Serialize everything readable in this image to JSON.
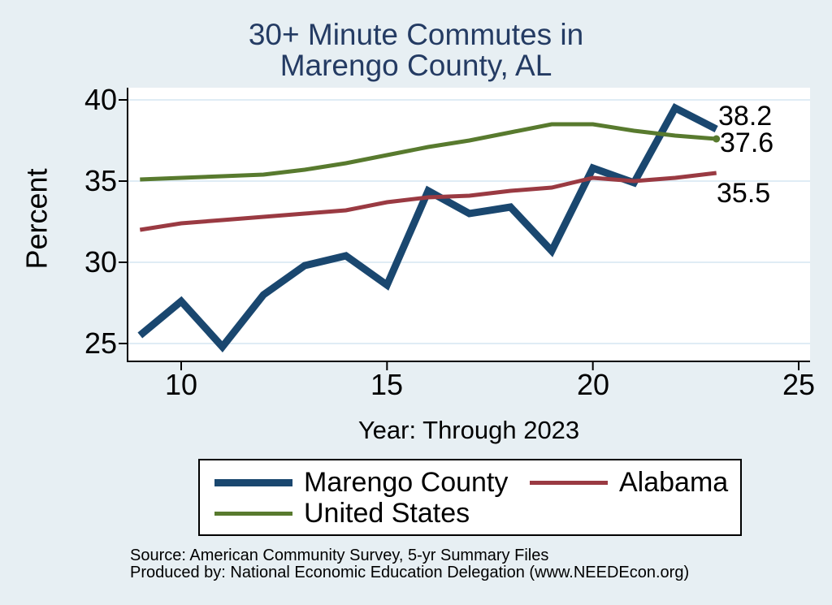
{
  "title": {
    "line1": "30+ Minute Commutes in",
    "line2": "Marengo County, AL"
  },
  "axes": {
    "y_label": "Percent",
    "x_label": "Year: Through 2023",
    "y_tick_labels": [
      "40",
      "35",
      "30",
      "25"
    ],
    "x_tick_labels": [
      "10",
      "15",
      "20",
      "25"
    ]
  },
  "chart_data": {
    "type": "line",
    "title": "30+ Minute Commutes in Marengo County, AL",
    "xlabel": "Year: Through 2023",
    "ylabel": "Percent",
    "x": [
      9,
      10,
      11,
      12,
      13,
      14,
      15,
      16,
      17,
      18,
      19,
      20,
      21,
      22,
      23
    ],
    "xlim": [
      8.7,
      25.3
    ],
    "ylim": [
      23.9,
      40.75
    ],
    "yticks": [
      25,
      30,
      35,
      40
    ],
    "xticks": [
      10,
      15,
      20,
      25
    ],
    "grid": true,
    "legend_position": "bottom",
    "series": [
      {
        "name": "Marengo County",
        "color": "#1a476f",
        "line_width": 9,
        "values": [
          25.5,
          27.6,
          24.8,
          28.0,
          29.8,
          30.4,
          28.6,
          34.4,
          33.0,
          33.4,
          30.7,
          35.8,
          34.9,
          39.5,
          38.2
        ]
      },
      {
        "name": "Alabama",
        "color": "#9a3a42",
        "line_width": 5,
        "values": [
          32.0,
          32.4,
          32.6,
          32.8,
          33.0,
          33.2,
          33.7,
          34.0,
          34.1,
          34.4,
          34.6,
          35.2,
          35.0,
          35.2,
          35.5
        ]
      },
      {
        "name": "United States",
        "color": "#587a2e",
        "line_width": 5,
        "end_marker": true,
        "values": [
          35.1,
          35.2,
          35.3,
          35.4,
          35.7,
          36.1,
          36.6,
          37.1,
          37.5,
          38.0,
          38.5,
          38.5,
          38.1,
          37.8,
          37.6
        ]
      }
    ],
    "end_labels": [
      {
        "text": "38.2",
        "series": "Marengo County"
      },
      {
        "text": "37.6",
        "series": "United States"
      },
      {
        "text": "35.5",
        "series": "Alabama"
      }
    ]
  },
  "legend": {
    "items": [
      {
        "label": "Marengo County"
      },
      {
        "label": "Alabama"
      },
      {
        "label": "United States"
      }
    ]
  },
  "source": {
    "line1": "Source: American Community Survey, 5-yr Summary Files",
    "line2": "Produced by: National Economic Education Delegation (www.NEEDEcon.org)"
  },
  "colors": {
    "background": "#e7eff3",
    "plot_background": "#ffffff",
    "gridline": "#dfecf5",
    "axis": "#000000",
    "title_text": "#243b63"
  }
}
